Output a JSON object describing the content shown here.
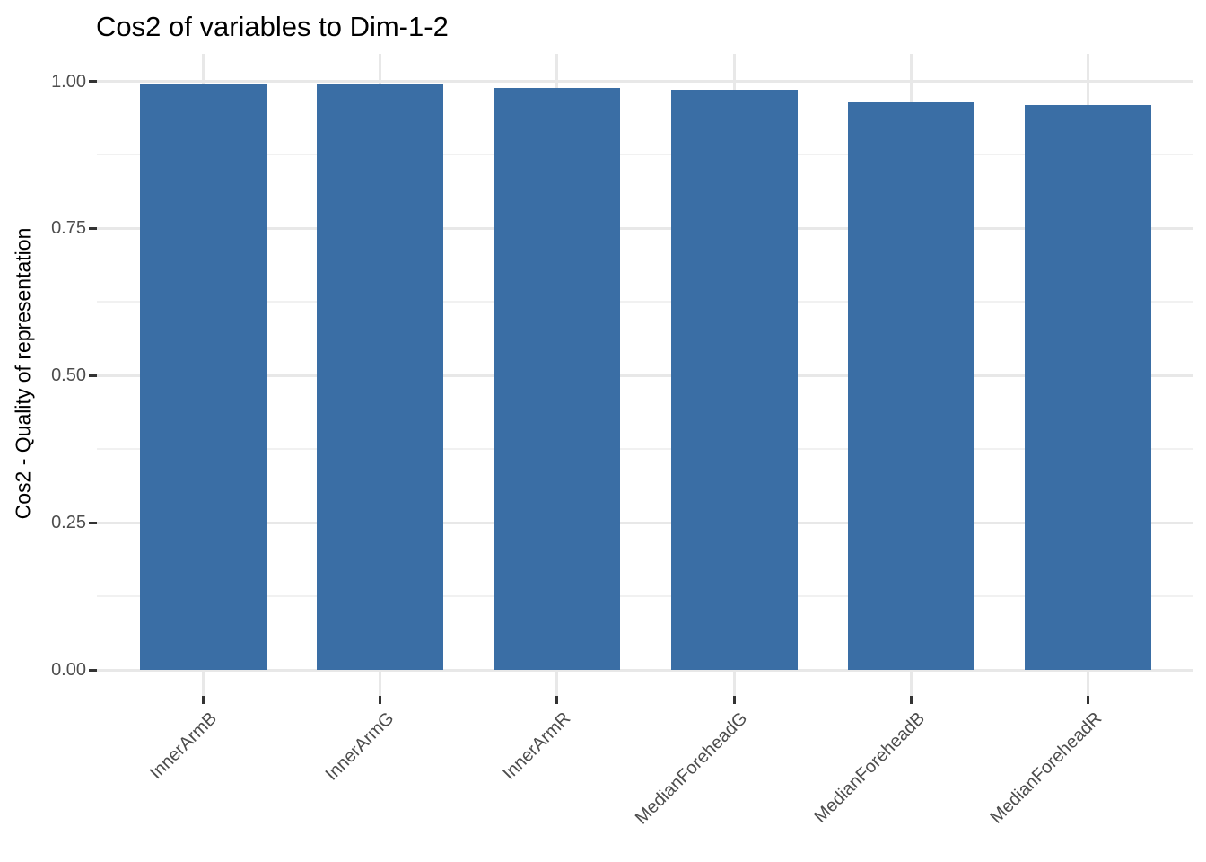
{
  "chart_data": {
    "type": "bar",
    "title": "Cos2 of variables to Dim-1-2",
    "xlabel": "",
    "ylabel": "Cos2 - Quality of representation",
    "categories": [
      "InnerArmB",
      "InnerArmG",
      "InnerArmR",
      "MedianForeheadG",
      "MedianForeheadB",
      "MedianForeheadR"
    ],
    "values": [
      0.996,
      0.994,
      0.988,
      0.985,
      0.964,
      0.96
    ],
    "ylim": [
      0,
      1.0
    ],
    "y_major_ticks": [
      0,
      0.25,
      0.5,
      0.75,
      1.0
    ],
    "y_tick_labels": [
      "0.00",
      "0.25",
      "0.50",
      "0.75",
      "1.00"
    ],
    "y_minor_ticks": [
      0.125,
      0.375,
      0.625,
      0.875
    ],
    "grid": true,
    "legend": "none",
    "colors": {
      "bar_fill": "#3A6EA5",
      "grid_major": "#E8E8E8",
      "grid_minor": "#F1F1F1",
      "axis_tick": "#333333",
      "tick_label": "#4D4D4D",
      "title_text": "#000000"
    }
  }
}
